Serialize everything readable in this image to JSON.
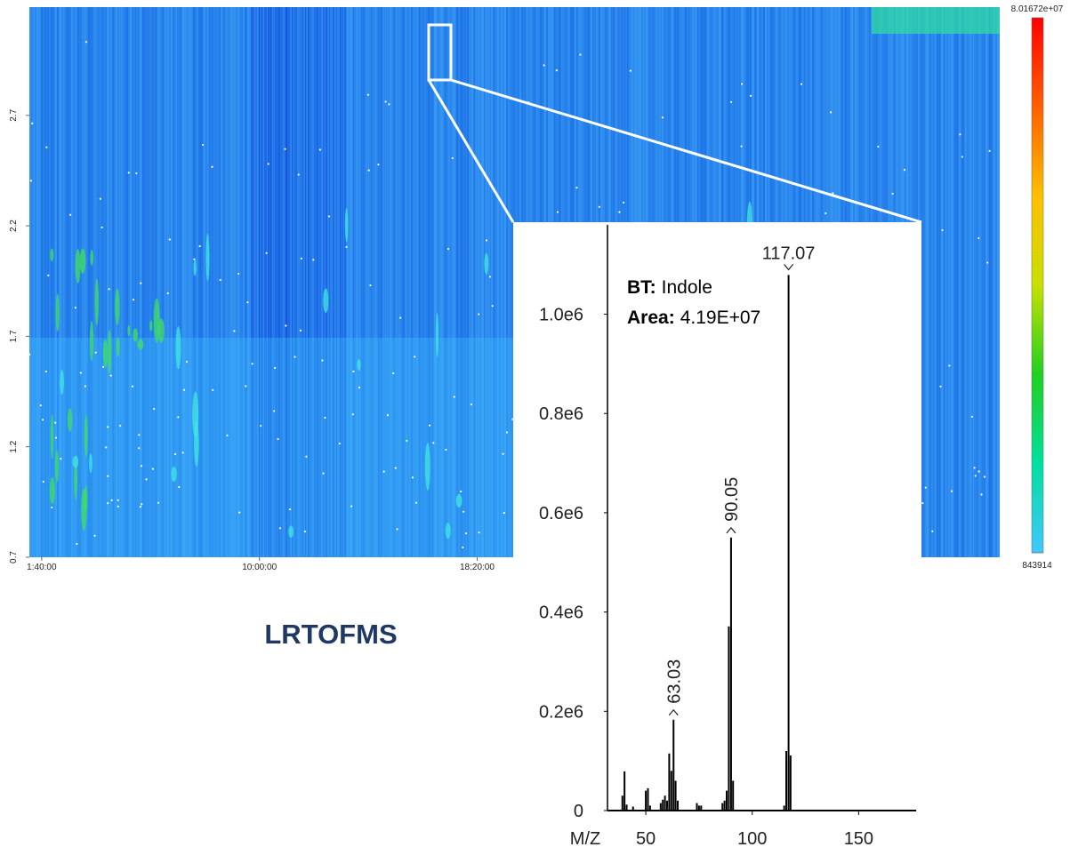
{
  "chart_data": [
    {
      "type": "heatmap",
      "title": "LRTOFMS",
      "xlim": [
        4300,
        138000
      ],
      "xticks": [
        {
          "value": 6000,
          "label": "1:40:00"
        },
        {
          "value": 36000,
          "label": "10:00:00"
        },
        {
          "value": 66000,
          "label": "18:20:00"
        }
      ],
      "ylim": [
        0.7,
        3.19
      ],
      "yticks": [
        0.7,
        1.2,
        1.7,
        2.2,
        2.7
      ],
      "zlim": [
        843914,
        80167200
      ],
      "zticks": [
        {
          "value": 80167200,
          "label": "8.01672e+07"
        },
        843914
      ],
      "colormap": [
        "#40c8ff",
        "#00e0a0",
        "#20d020",
        "#c8e000",
        "#ffc000",
        "#ff6000",
        "#ff0000"
      ]
    },
    {
      "type": "bar",
      "xlabel": "M/Z",
      "xlim": [
        32,
        177
      ],
      "xticks": [
        50,
        100,
        150
      ],
      "ylim": [
        0,
        1180000
      ],
      "yticks": [
        0,
        {
          "value": 200000,
          "label": "0.2e6"
        },
        {
          "value": 400000,
          "label": "0.4e6"
        },
        {
          "value": 600000,
          "label": "0.6e6"
        },
        {
          "value": 800000,
          "label": "0.8e6"
        },
        {
          "value": 1000000,
          "label": "1.0e6"
        }
      ],
      "color": "#000000",
      "annotations": [
        {
          "key": "BT:",
          "text": "Indole"
        },
        {
          "key": "Area:",
          "text": "4.19E+07"
        }
      ],
      "series": [
        {
          "x": [
            39,
            40,
            41,
            44,
            50,
            51,
            52,
            57,
            58,
            59,
            60,
            61,
            62,
            63.03,
            64,
            65,
            74,
            75,
            76,
            86,
            87,
            88,
            89,
            90.05,
            91,
            115,
            116,
            117.07,
            118
          ],
          "values": [
            30000,
            79000,
            12000,
            8000,
            40000,
            45000,
            10000,
            15000,
            22000,
            30000,
            20000,
            115000,
            80000,
            183000,
            60000,
            20000,
            15000,
            10000,
            10000,
            15000,
            20000,
            40000,
            371000,
            550000,
            60000,
            10000,
            120000,
            1079000,
            111000
          ]
        }
      ]
    }
  ]
}
